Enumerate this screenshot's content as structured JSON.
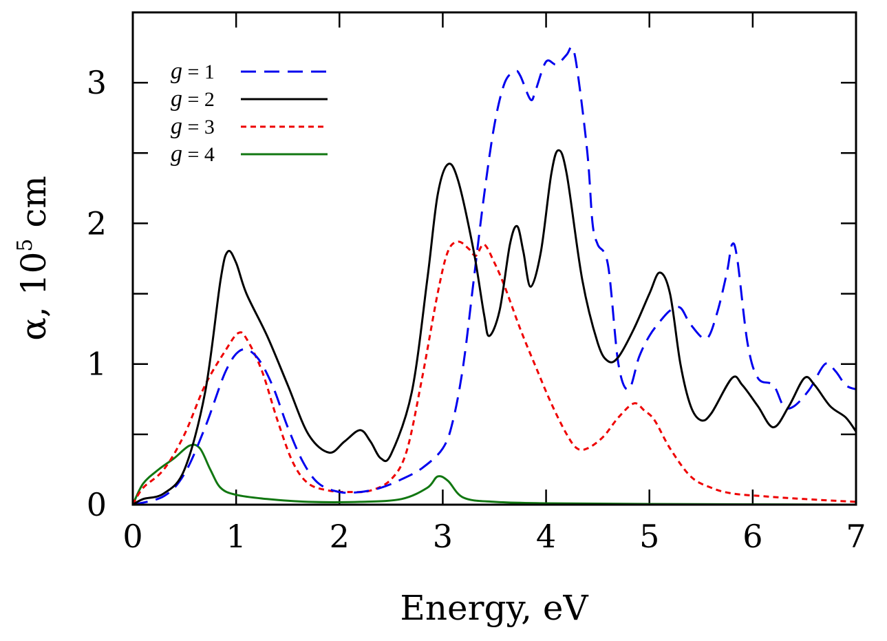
{
  "chart_data": {
    "type": "line",
    "title": "",
    "xlabel": "Energy, eV",
    "ylabel_prefix": "α, 10",
    "ylabel_sup": "5",
    "ylabel_suffix": " cm",
    "xlim": [
      0,
      7
    ],
    "ylim": [
      0,
      3.5
    ],
    "x_ticks": [
      "0",
      "1",
      "2",
      "3",
      "4",
      "5",
      "6",
      "7"
    ],
    "y_ticks": [
      "0",
      "1",
      "2",
      "3"
    ],
    "y_tick_values": [
      0,
      1,
      2,
      3
    ],
    "y_minor_values": [
      0.5,
      1.5,
      2.5
    ],
    "legend_position": "top-left",
    "series": [
      {
        "name": "g = 1",
        "var": "g",
        "label": " = 1",
        "color": "#0000ee",
        "dash": "22,12",
        "points": [
          [
            0,
            0
          ],
          [
            0.3,
            0.06
          ],
          [
            0.5,
            0.22
          ],
          [
            0.7,
            0.55
          ],
          [
            0.9,
            0.95
          ],
          [
            1.05,
            1.1
          ],
          [
            1.2,
            1.05
          ],
          [
            1.35,
            0.85
          ],
          [
            1.5,
            0.55
          ],
          [
            1.65,
            0.3
          ],
          [
            1.8,
            0.15
          ],
          [
            2.0,
            0.09
          ],
          [
            2.2,
            0.09
          ],
          [
            2.4,
            0.12
          ],
          [
            2.6,
            0.18
          ],
          [
            2.8,
            0.26
          ],
          [
            3.0,
            0.4
          ],
          [
            3.1,
            0.6
          ],
          [
            3.2,
            1.0
          ],
          [
            3.3,
            1.6
          ],
          [
            3.4,
            2.2
          ],
          [
            3.5,
            2.7
          ],
          [
            3.6,
            3.0
          ],
          [
            3.7,
            3.08
          ],
          [
            3.75,
            3.05
          ],
          [
            3.85,
            2.88
          ],
          [
            3.9,
            2.95
          ],
          [
            4.0,
            3.15
          ],
          [
            4.1,
            3.13
          ],
          [
            4.2,
            3.2
          ],
          [
            4.25,
            3.25
          ],
          [
            4.3,
            3.1
          ],
          [
            4.4,
            2.5
          ],
          [
            4.45,
            2.0
          ],
          [
            4.5,
            1.85
          ],
          [
            4.6,
            1.7
          ],
          [
            4.7,
            1.0
          ],
          [
            4.8,
            0.82
          ],
          [
            4.9,
            1.05
          ],
          [
            5.0,
            1.2
          ],
          [
            5.1,
            1.3
          ],
          [
            5.2,
            1.38
          ],
          [
            5.3,
            1.4
          ],
          [
            5.4,
            1.28
          ],
          [
            5.55,
            1.18
          ],
          [
            5.65,
            1.35
          ],
          [
            5.75,
            1.65
          ],
          [
            5.8,
            1.85
          ],
          [
            5.85,
            1.75
          ],
          [
            5.95,
            1.15
          ],
          [
            6.05,
            0.9
          ],
          [
            6.2,
            0.85
          ],
          [
            6.3,
            0.7
          ],
          [
            6.4,
            0.7
          ],
          [
            6.55,
            0.82
          ],
          [
            6.7,
            1.0
          ],
          [
            6.8,
            0.95
          ],
          [
            6.9,
            0.85
          ],
          [
            7.0,
            0.82
          ]
        ]
      },
      {
        "name": "g = 2",
        "var": "g",
        "label": " = 2",
        "color": "#000000",
        "dash": "",
        "points": [
          [
            0,
            0
          ],
          [
            0.1,
            0.04
          ],
          [
            0.3,
            0.08
          ],
          [
            0.5,
            0.25
          ],
          [
            0.7,
            0.8
          ],
          [
            0.85,
            1.6
          ],
          [
            0.92,
            1.8
          ],
          [
            1.0,
            1.72
          ],
          [
            1.1,
            1.5
          ],
          [
            1.3,
            1.2
          ],
          [
            1.5,
            0.85
          ],
          [
            1.7,
            0.5
          ],
          [
            1.9,
            0.37
          ],
          [
            2.05,
            0.45
          ],
          [
            2.2,
            0.53
          ],
          [
            2.3,
            0.45
          ],
          [
            2.4,
            0.33
          ],
          [
            2.5,
            0.36
          ],
          [
            2.7,
            0.8
          ],
          [
            2.85,
            1.6
          ],
          [
            2.95,
            2.2
          ],
          [
            3.05,
            2.42
          ],
          [
            3.15,
            2.3
          ],
          [
            3.3,
            1.8
          ],
          [
            3.4,
            1.35
          ],
          [
            3.45,
            1.2
          ],
          [
            3.55,
            1.38
          ],
          [
            3.65,
            1.85
          ],
          [
            3.72,
            1.98
          ],
          [
            3.78,
            1.8
          ],
          [
            3.85,
            1.55
          ],
          [
            3.95,
            1.8
          ],
          [
            4.05,
            2.35
          ],
          [
            4.12,
            2.52
          ],
          [
            4.2,
            2.35
          ],
          [
            4.35,
            1.6
          ],
          [
            4.5,
            1.15
          ],
          [
            4.6,
            1.02
          ],
          [
            4.7,
            1.05
          ],
          [
            4.85,
            1.25
          ],
          [
            5.0,
            1.5
          ],
          [
            5.1,
            1.65
          ],
          [
            5.2,
            1.5
          ],
          [
            5.3,
            1.0
          ],
          [
            5.4,
            0.7
          ],
          [
            5.5,
            0.6
          ],
          [
            5.6,
            0.65
          ],
          [
            5.8,
            0.9
          ],
          [
            5.9,
            0.85
          ],
          [
            6.05,
            0.7
          ],
          [
            6.2,
            0.55
          ],
          [
            6.35,
            0.7
          ],
          [
            6.5,
            0.9
          ],
          [
            6.6,
            0.85
          ],
          [
            6.75,
            0.7
          ],
          [
            6.9,
            0.62
          ],
          [
            7.0,
            0.52
          ]
        ]
      },
      {
        "name": "g = 3",
        "var": "g",
        "label": " = 3",
        "color": "#ee0000",
        "dash": "8,6",
        "points": [
          [
            0,
            0
          ],
          [
            0.1,
            0.12
          ],
          [
            0.3,
            0.25
          ],
          [
            0.5,
            0.5
          ],
          [
            0.7,
            0.85
          ],
          [
            0.9,
            1.1
          ],
          [
            1.02,
            1.22
          ],
          [
            1.1,
            1.18
          ],
          [
            1.25,
            0.95
          ],
          [
            1.4,
            0.6
          ],
          [
            1.55,
            0.3
          ],
          [
            1.7,
            0.15
          ],
          [
            1.9,
            0.1
          ],
          [
            2.1,
            0.09
          ],
          [
            2.3,
            0.1
          ],
          [
            2.5,
            0.18
          ],
          [
            2.65,
            0.38
          ],
          [
            2.8,
            0.9
          ],
          [
            2.95,
            1.5
          ],
          [
            3.05,
            1.8
          ],
          [
            3.15,
            1.87
          ],
          [
            3.25,
            1.82
          ],
          [
            3.32,
            1.77
          ],
          [
            3.4,
            1.85
          ],
          [
            3.5,
            1.72
          ],
          [
            3.6,
            1.55
          ],
          [
            3.75,
            1.25
          ],
          [
            3.9,
            0.98
          ],
          [
            4.05,
            0.72
          ],
          [
            4.2,
            0.5
          ],
          [
            4.3,
            0.4
          ],
          [
            4.4,
            0.4
          ],
          [
            4.55,
            0.48
          ],
          [
            4.7,
            0.62
          ],
          [
            4.85,
            0.72
          ],
          [
            4.95,
            0.67
          ],
          [
            5.05,
            0.6
          ],
          [
            5.2,
            0.4
          ],
          [
            5.4,
            0.2
          ],
          [
            5.6,
            0.12
          ],
          [
            5.8,
            0.08
          ],
          [
            6.1,
            0.06
          ],
          [
            6.5,
            0.04
          ],
          [
            7.0,
            0.02
          ]
        ]
      },
      {
        "name": "g = 4",
        "var": "g",
        "label": " = 4",
        "color": "#117711",
        "dash": "",
        "points": [
          [
            0,
            0
          ],
          [
            0.1,
            0.15
          ],
          [
            0.25,
            0.25
          ],
          [
            0.4,
            0.33
          ],
          [
            0.55,
            0.42
          ],
          [
            0.65,
            0.4
          ],
          [
            0.75,
            0.25
          ],
          [
            0.85,
            0.12
          ],
          [
            1.0,
            0.07
          ],
          [
            1.3,
            0.04
          ],
          [
            1.7,
            0.02
          ],
          [
            2.2,
            0.02
          ],
          [
            2.6,
            0.04
          ],
          [
            2.85,
            0.12
          ],
          [
            2.95,
            0.2
          ],
          [
            3.05,
            0.17
          ],
          [
            3.2,
            0.05
          ],
          [
            3.5,
            0.02
          ],
          [
            4.0,
            0.01
          ],
          [
            5.0,
            0.005
          ],
          [
            7.0,
            0.0
          ]
        ]
      }
    ]
  }
}
